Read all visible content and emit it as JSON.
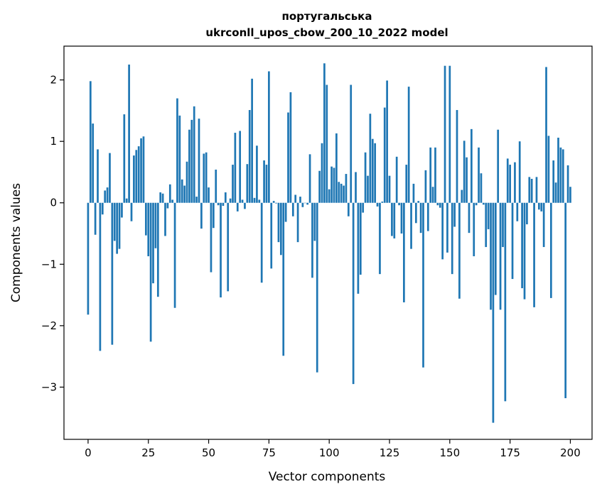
{
  "chart_data": {
    "type": "bar",
    "title_line1": "португальська",
    "title_line2": "ukrconll_upos_cbow_200_10_2022 model",
    "xlabel": "Vector components",
    "ylabel": "Components values",
    "xlim": [
      -10,
      209
    ],
    "ylim": [
      -3.85,
      2.55
    ],
    "xticks": [
      0,
      25,
      50,
      75,
      100,
      125,
      150,
      175,
      200
    ],
    "yticks": [
      -3,
      -2,
      -1,
      0,
      1,
      2
    ],
    "bar_color": "#1f77b4",
    "grid": false,
    "values": [
      -1.82,
      1.98,
      1.29,
      -0.52,
      0.87,
      -2.41,
      -0.19,
      0.2,
      0.25,
      0.81,
      -2.31,
      -0.62,
      -0.83,
      -0.75,
      -0.24,
      1.44,
      0.07,
      2.25,
      -0.3,
      0.77,
      0.86,
      0.92,
      1.05,
      1.08,
      -0.53,
      -0.87,
      -2.26,
      -1.31,
      -0.74,
      -1.53,
      0.17,
      0.15,
      -0.54,
      -0.09,
      0.3,
      0.05,
      -1.71,
      1.7,
      1.42,
      0.38,
      0.28,
      0.67,
      1.19,
      1.35,
      1.57,
      0.1,
      1.37,
      -0.42,
      0.8,
      0.82,
      0.25,
      -1.13,
      -0.41,
      0.54,
      -0.04,
      -1.54,
      -0.05,
      0.17,
      -1.44,
      0.07,
      0.62,
      1.14,
      -0.14,
      1.17,
      0.05,
      -0.1,
      0.63,
      1.51,
      2.02,
      0.08,
      0.93,
      0.05,
      -1.3,
      0.69,
      0.62,
      2.14,
      -1.07,
      0.03,
      -0.01,
      -0.64,
      -0.85,
      -2.49,
      -0.31,
      1.47,
      1.8,
      -0.22,
      0.13,
      -0.64,
      0.1,
      -0.07,
      0.0,
      -0.03,
      0.79,
      -1.22,
      -0.62,
      -2.76,
      0.52,
      0.97,
      2.27,
      1.92,
      0.22,
      0.59,
      0.57,
      1.13,
      0.34,
      0.31,
      0.28,
      0.47,
      -0.22,
      1.92,
      -2.95,
      0.5,
      -1.48,
      -1.17,
      -0.16,
      0.82,
      0.44,
      1.45,
      1.04,
      0.97,
      -0.06,
      -1.16,
      0.02,
      1.55,
      1.99,
      0.44,
      -0.54,
      -0.58,
      0.75,
      -0.04,
      -0.5,
      -1.62,
      0.62,
      1.89,
      -0.75,
      0.31,
      -0.33,
      0.03,
      -0.49,
      -2.68,
      0.53,
      -0.46,
      0.9,
      0.26,
      0.9,
      -0.04,
      -0.08,
      -0.92,
      2.23,
      -0.81,
      2.23,
      -1.16,
      -0.39,
      1.51,
      -1.56,
      0.21,
      1.01,
      0.74,
      -0.49,
      1.2,
      -0.87,
      -0.04,
      0.9,
      0.48,
      -0.03,
      -0.72,
      -0.43,
      -1.74,
      -3.58,
      -1.5,
      1.19,
      -1.74,
      -0.72,
      -3.23,
      0.72,
      0.62,
      -1.24,
      0.66,
      -0.3,
      1.0,
      -1.39,
      -1.57,
      -0.35,
      0.42,
      0.39,
      -1.7,
      0.42,
      -0.11,
      -0.14,
      -0.72,
      2.21,
      1.09,
      -1.55,
      0.69,
      0.33,
      1.06,
      0.9,
      0.87,
      -3.18,
      0.61,
      0.26
    ]
  }
}
